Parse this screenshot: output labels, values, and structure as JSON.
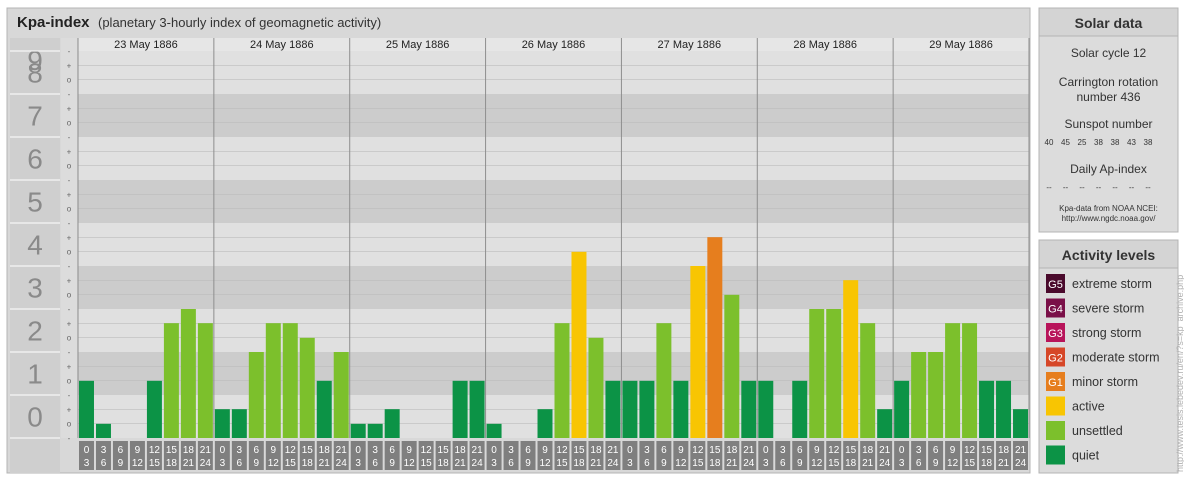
{
  "header": {
    "title": "Kpa-index",
    "subtitle": "(planetary 3-hourly index of geomagnetic activity)"
  },
  "colors": {
    "quiet": "#0c9346",
    "unsettled": "#7cc02c",
    "active": "#f8c502",
    "minor_storm": "#e67e1e",
    "moderate_storm": "#d64728",
    "strong_storm": "#b8145a",
    "severe_storm": "#7a1048",
    "extreme_storm": "#4a0a2c"
  },
  "solar": {
    "title": "Solar data",
    "cycle": "Solar cycle 12",
    "rotation_l1": "Carrington rotation",
    "rotation_l2": "number 436",
    "sunspot_title": "Sunspot number",
    "sunspots": [
      "40",
      "45",
      "25",
      "38",
      "38",
      "43",
      "38"
    ],
    "ap_title": "Daily Ap-index",
    "ap_values": [
      "--",
      "--",
      "--",
      "--",
      "--",
      "--",
      "--"
    ],
    "source_l1": "Kpa-data from NOAA NCEI:",
    "source_l2": "http://www.ngdc.noaa.gov/"
  },
  "legend": {
    "title": "Activity levels",
    "items": [
      {
        "badge": "G5",
        "label": "extreme storm",
        "color": "#4a0a2c"
      },
      {
        "badge": "G4",
        "label": "severe storm",
        "color": "#7a1048"
      },
      {
        "badge": "G3",
        "label": "strong storm",
        "color": "#b8145a"
      },
      {
        "badge": "G2",
        "label": "moderate storm",
        "color": "#d64728"
      },
      {
        "badge": "G1",
        "label": "minor storm",
        "color": "#e67e1e"
      },
      {
        "badge": "",
        "label": "active",
        "color": "#f8c502"
      },
      {
        "badge": "",
        "label": "unsettled",
        "color": "#7cc02c"
      },
      {
        "badge": "",
        "label": "quiet",
        "color": "#0c9346"
      }
    ]
  },
  "credit": "http://www.tesis.lebedev.ru/en/?s=kp_archive.php",
  "chart_data": {
    "type": "bar",
    "title": "Kpa-index",
    "ylim": [
      0,
      9
    ],
    "y_ticks": [
      "0",
      "1",
      "2",
      "3",
      "4",
      "5",
      "6",
      "7",
      "8",
      "9"
    ],
    "y_minor": [
      "-",
      "o",
      "+"
    ],
    "days": [
      "23 May 1886",
      "24 May 1886",
      "25 May 1886",
      "26 May 1886",
      "27 May 1886",
      "28 May 1886",
      "29 May 1886"
    ],
    "interval_start": [
      "0",
      "3",
      "6",
      "9",
      "12",
      "15",
      "18",
      "21"
    ],
    "interval_end": [
      "3",
      "6",
      "9",
      "12",
      "15",
      "18",
      "21",
      "24"
    ],
    "values": [
      [
        1.33,
        0.33,
        0,
        0,
        1.33,
        2.67,
        3,
        2.67
      ],
      [
        0.67,
        0.67,
        2,
        2.67,
        2.67,
        2.33,
        1.33,
        2
      ],
      [
        0.33,
        0.33,
        0.67,
        0,
        0,
        0,
        1.33,
        1.33
      ],
      [
        0.33,
        0,
        0,
        0.67,
        2.67,
        4.33,
        2.33,
        1.33
      ],
      [
        1.33,
        1.33,
        2.67,
        1.33,
        4,
        4.67,
        3.33,
        1.33
      ],
      [
        1.33,
        0,
        1.33,
        3,
        3,
        3.67,
        2.67,
        0.67
      ],
      [
        1.33,
        2,
        2,
        2.67,
        2.67,
        1.33,
        1.33,
        0.67
      ]
    ]
  }
}
